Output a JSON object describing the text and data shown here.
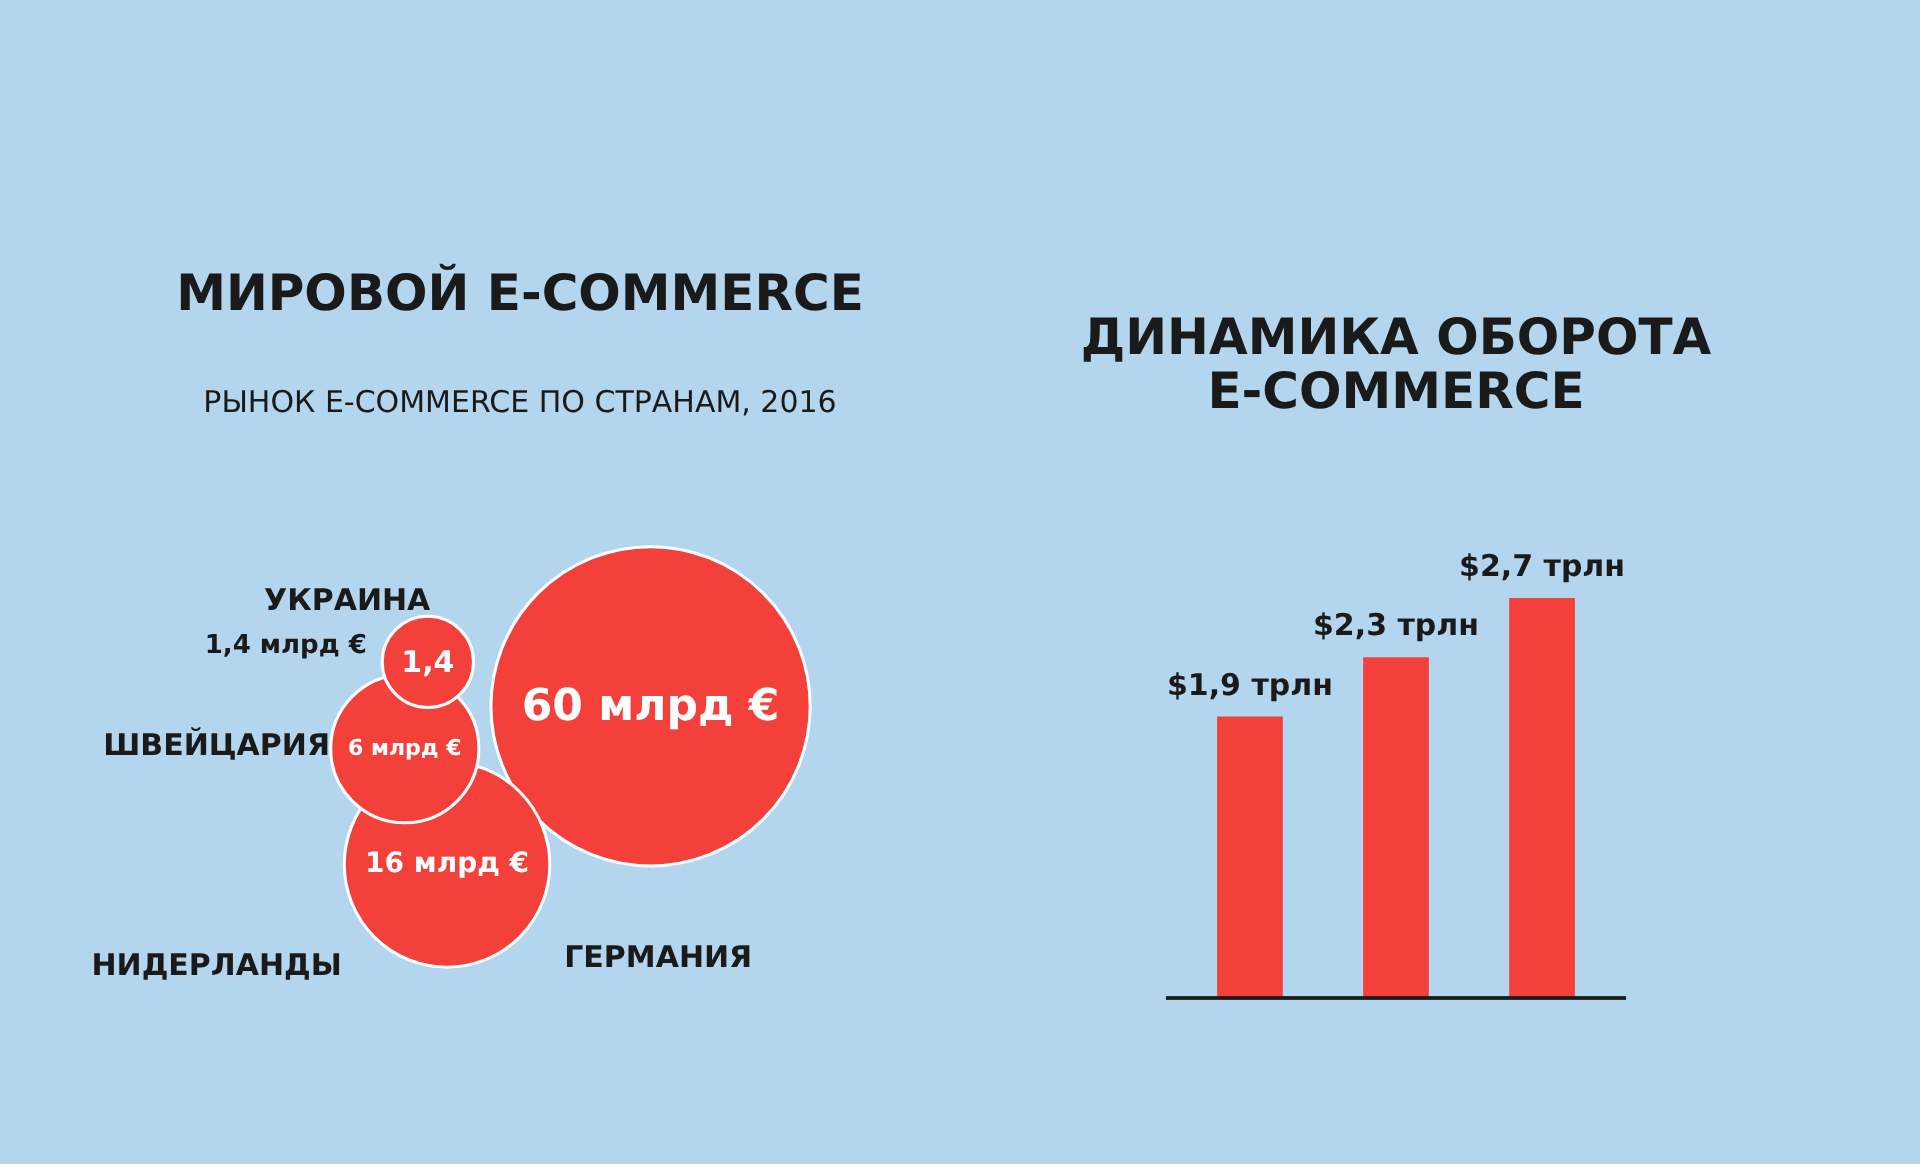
{
  "chart_data": [
    {
      "type": "other",
      "title": "МИРОВОЙ E-COMMERCE",
      "subtitle": "РЫНОК E-COMMERCE ПО СТРАНАМ, 2016",
      "categories": [
        "УКРАИНА",
        "ШВЕЙЦАРИЯ",
        "НИДЕРЛАНДЫ",
        "ГЕРМАНИЯ"
      ],
      "values": [
        1.4,
        6,
        16,
        60
      ],
      "value_labels": [
        "1,4",
        "6 млрд €",
        "16 млрд €",
        "60 млрд €"
      ],
      "color": "#f4403a",
      "annotations": [
        "1,4 млрд €"
      ]
    },
    {
      "type": "bar",
      "title": "ДИНАМИКА ОБОРОТА E-COMMERCE",
      "categories": [
        null,
        null,
        null
      ],
      "values": [
        1.9,
        2.3,
        2.7
      ],
      "value_labels": [
        "$1,9 трлн",
        "$2,3 трлн",
        "$2,7 трлн"
      ],
      "color": "#f4403a"
    }
  ]
}
